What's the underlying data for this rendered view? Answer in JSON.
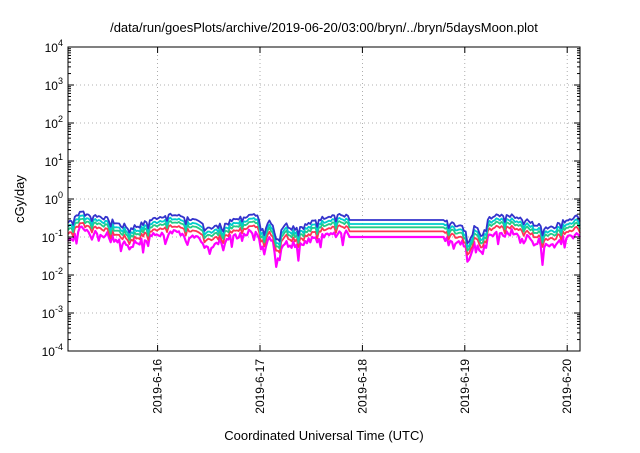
{
  "chart_data": {
    "type": "line",
    "title": "/data/run/goesPlots/archive/2019-06-20/03:00/bryn/../bryn/5daysMoon.plot",
    "xlabel": "Coordinated Universal Time (UTC)",
    "ylabel": "cGy/day",
    "y_scale": "log",
    "ylim": [
      0.0001,
      10000
    ],
    "y_ticks": [
      {
        "base": "10",
        "exp": "4",
        "value": 10000
      },
      {
        "base": "10",
        "exp": "3",
        "value": 1000
      },
      {
        "base": "10",
        "exp": "2",
        "value": 100
      },
      {
        "base": "10",
        "exp": "1",
        "value": 10
      },
      {
        "base": "10",
        "exp": "0",
        "value": 1
      },
      {
        "base": "10",
        "exp": "-1",
        "value": 0.1
      },
      {
        "base": "10",
        "exp": "-2",
        "value": 0.01
      },
      {
        "base": "10",
        "exp": "-3",
        "value": 0.001
      },
      {
        "base": "10",
        "exp": "-4",
        "value": 0.0001
      }
    ],
    "xlim": [
      "2019-06-15T03:00",
      "2019-06-20T03:00"
    ],
    "x_ticks": [
      {
        "label": "2019-6-16",
        "date": "2019-06-16T00:00"
      },
      {
        "label": "2019-6-17",
        "date": "2019-06-17T00:00"
      },
      {
        "label": "2019-6-18",
        "date": "2019-06-18T00:00"
      },
      {
        "label": "2019-6-19",
        "date": "2019-06-19T00:00"
      },
      {
        "label": "2019-6-20",
        "date": "2019-06-20T00:00"
      }
    ],
    "grid": true,
    "grid_style": "dotted",
    "series": [
      {
        "color": "#ff00ff",
        "level": 0.1,
        "style": "spiky"
      },
      {
        "color": "#ff3355",
        "level": 0.14,
        "style": "smooth"
      },
      {
        "color": "#22cc88",
        "level": 0.18,
        "style": "smooth"
      },
      {
        "color": "#00cccc",
        "level": 0.22,
        "style": "smooth"
      },
      {
        "color": "#3333cc",
        "level": 0.28,
        "style": "smooth"
      }
    ],
    "flat_segment": {
      "start": "2019-06-17T21:00",
      "end": "2019-06-18T19:00"
    },
    "dips": [
      {
        "at": "2019-06-17T01:00",
        "depth": 0.35
      },
      {
        "at": "2019-06-17T04:00",
        "depth": 0.25
      },
      {
        "at": "2019-06-19T01:00",
        "depth": 0.35
      },
      {
        "at": "2019-06-19T04:00",
        "depth": 0.3
      }
    ]
  }
}
